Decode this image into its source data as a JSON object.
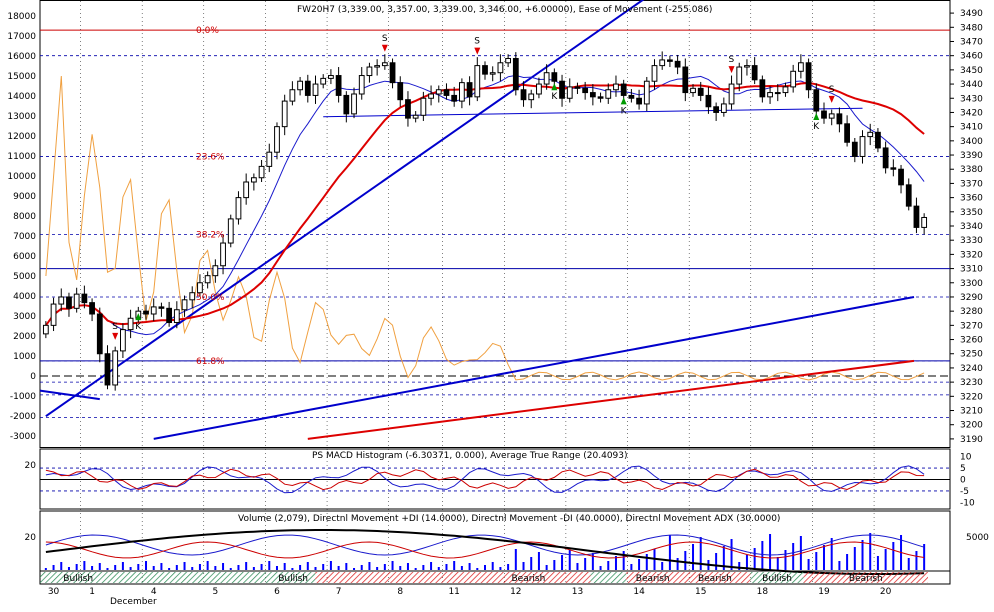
{
  "colors": {
    "up_candle": "#ffffff",
    "down_candle": "#000000",
    "ma_fast": "#1a1acc",
    "ma_slow": "#dd0000",
    "trend_blue": "#0000cc",
    "trend_red": "#dd0000",
    "ease_of_movement": "#f0a040",
    "fib_line": "#cc0000",
    "grid_dash": "#0000aa",
    "bullish_hatch": "#2e8b57",
    "bearish_hatch": "#dd2222",
    "volume_bar": "#0000ff",
    "adx": "#000000",
    "plus_di": "#1a1acc",
    "minus_di": "#cc0000",
    "green_arrow": "#009900",
    "red_arrow": "#dd0000"
  },
  "main_panel": {
    "title": "FW20H7 (3,339.00, 3,357.00, 3,339.00, 3,346.00, +6.00000), Ease of Movement (-255.086)",
    "left_ticks": [
      "18000",
      "17000",
      "16000",
      "15000",
      "14000",
      "13000",
      "12000",
      "11000",
      "10000",
      "9000",
      "8000",
      "7000",
      "6000",
      "5000",
      "4000",
      "3000",
      "2000",
      "1000",
      "0",
      "-1000",
      "-2000",
      "-3000"
    ],
    "right_ticks": [
      "3490",
      "3480",
      "3470",
      "3460",
      "3450",
      "3440",
      "3430",
      "3420",
      "3410",
      "3400",
      "3390",
      "3380",
      "3370",
      "3360",
      "3350",
      "3340",
      "3330",
      "3320",
      "3310",
      "3300",
      "3290",
      "3280",
      "3270",
      "3260",
      "3250",
      "3240",
      "3230",
      "3220",
      "3210",
      "3200",
      "3190"
    ],
    "fib_levels": [
      {
        "label": "0.0%",
        "price": 3478
      },
      {
        "label": "23.6%",
        "price": 3389
      },
      {
        "label": "38.2%",
        "price": 3334
      },
      {
        "label": "50.0%",
        "price": 3290
      },
      {
        "label": "61.8%",
        "price": 3245
      }
    ],
    "signal_labels": [
      "S",
      "K",
      "S",
      "S",
      "K",
      "K",
      "S",
      "K",
      "S"
    ]
  },
  "chart_data": [
    {
      "type": "candlestick",
      "symbol": "FW20H7",
      "title": "FW20H7 (3,339.00, 3,357.00, 3,339.00, 3,346.00, +6.00000), Ease of Movement (-255.086)",
      "ylim": [
        3185,
        3495
      ],
      "secondary_ylim": [
        -3500,
        18500
      ],
      "x_labels": [
        "30",
        "1",
        "4",
        "5",
        "6",
        "7",
        "8",
        "11",
        "12",
        "13",
        "14",
        "15",
        "18",
        "19",
        "20"
      ],
      "month_label": "December",
      "close": [
        3270,
        3285,
        3290,
        3282,
        3292,
        3286,
        3278,
        3250,
        3228,
        3252,
        3267,
        3275,
        3280,
        3278,
        3283,
        3282,
        3272,
        3281,
        3288,
        3293,
        3300,
        3305,
        3312,
        3328,
        3345,
        3360,
        3371,
        3374,
        3382,
        3392,
        3410,
        3428,
        3436,
        3442,
        3432,
        3440,
        3444,
        3446,
        3432,
        3419,
        3433,
        3446,
        3452,
        3453,
        3455,
        3441,
        3429,
        3416,
        3418,
        3430,
        3433,
        3436,
        3432,
        3428,
        3441,
        3431,
        3453,
        3447,
        3448,
        3455,
        3458,
        3436,
        3429,
        3433,
        3440,
        3448,
        3442,
        3430,
        3438,
        3437,
        3434,
        3431,
        3430,
        3436,
        3440,
        3432,
        3430,
        3426,
        3442,
        3453,
        3457,
        3456,
        3452,
        3434,
        3437,
        3432,
        3424,
        3420,
        3426,
        3440,
        3452,
        3453,
        3443,
        3431,
        3434,
        3434,
        3438,
        3449,
        3455,
        3436,
        3421,
        3416,
        3419,
        3412,
        3399,
        3389,
        3403,
        3406,
        3395,
        3381,
        3380,
        3369,
        3354,
        3339,
        3346
      ],
      "ma_fast_ref": "blue moving average",
      "ma_slow_ref": "red moving average"
    },
    {
      "type": "line",
      "title": "PS MACD Histogram (-6.30371, 0.000), Average True Range (20.4093)",
      "ylim": [
        -12,
        12
      ],
      "right_ticks": [
        "10",
        "5",
        "0",
        "-5",
        "-10"
      ],
      "left_ticks": [
        "20"
      ]
    },
    {
      "type": "bar",
      "title": "Volume (2,079), Directnl Movement +DI (14.0000), Directnl Movement -DI (40.0000), Directnl Movement ADX (30.0000)",
      "left_ticks": [
        "20"
      ],
      "right_ticks": [
        "5000"
      ]
    }
  ],
  "trend_bands": [
    {
      "label": "Bullish",
      "kind": "bull",
      "from": 0,
      "to": 0.086
    },
    {
      "label": "",
      "kind": "bull",
      "from": 0.086,
      "to": 0.26
    },
    {
      "label": "Bullish",
      "kind": "bull",
      "from": 0.26,
      "to": 0.31
    },
    {
      "label": "",
      "kind": "bear",
      "from": 0.31,
      "to": 0.48
    },
    {
      "label": "Bearish",
      "kind": "bear",
      "from": 0.48,
      "to": 0.62
    },
    {
      "label": "",
      "kind": "bull",
      "from": 0.62,
      "to": 0.66
    },
    {
      "label": "Bearish",
      "kind": "bear",
      "from": 0.66,
      "to": 0.72
    },
    {
      "label": "Bearish",
      "kind": "bear",
      "from": 0.72,
      "to": 0.8
    },
    {
      "label": "Bullish",
      "kind": "bull",
      "from": 0.8,
      "to": 0.86
    },
    {
      "label": "Bearish",
      "kind": "bear",
      "from": 0.86,
      "to": 1.0
    }
  ]
}
